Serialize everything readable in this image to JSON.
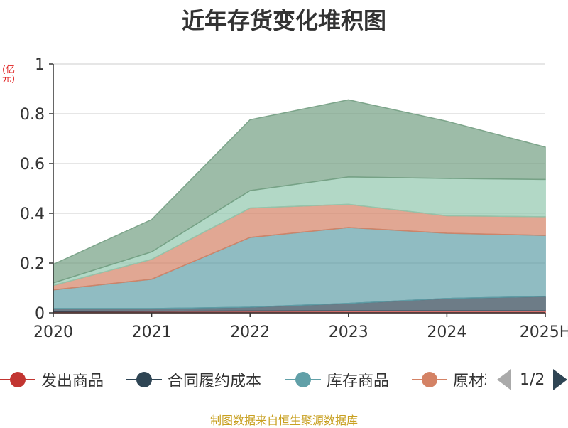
{
  "chart_data": {
    "type": "area",
    "stacked": true,
    "title": "近年存货变化堆积图",
    "unit": "(亿元)",
    "categories": [
      "2020",
      "2021",
      "2022",
      "2023",
      "2024",
      "2025H"
    ],
    "ylim": [
      0,
      1
    ],
    "yticks": [
      "0",
      "0.2",
      "0.4",
      "0.6",
      "0.8",
      "1"
    ],
    "grid": true,
    "legend_position": "bottom",
    "series": [
      {
        "name": "发出商品",
        "color": "#c23531",
        "values": [
          0.005,
          0.006,
          0.007,
          0.008,
          0.008,
          0.008
        ]
      },
      {
        "name": "合同履约成本",
        "color": "#2f4554",
        "values": [
          0.012,
          0.011,
          0.016,
          0.03,
          0.05,
          0.058
        ]
      },
      {
        "name": "库存商品",
        "color": "#61a0a8",
        "values": [
          0.075,
          0.118,
          0.28,
          0.305,
          0.262,
          0.245
        ]
      },
      {
        "name": "原材料",
        "color": "#d48265",
        "values": [
          0.018,
          0.08,
          0.118,
          0.093,
          0.07,
          0.075
        ]
      },
      {
        "name": "",
        "color": "#91c7ae",
        "values": [
          0.01,
          0.03,
          0.07,
          0.11,
          0.15,
          0.15
        ]
      },
      {
        "name": "",
        "color": "#749f83",
        "values": [
          0.075,
          0.13,
          0.285,
          0.31,
          0.23,
          0.13
        ]
      }
    ]
  },
  "legend": {
    "page_text": "1/2"
  },
  "source": "制图数据来自恒生聚源数据库"
}
